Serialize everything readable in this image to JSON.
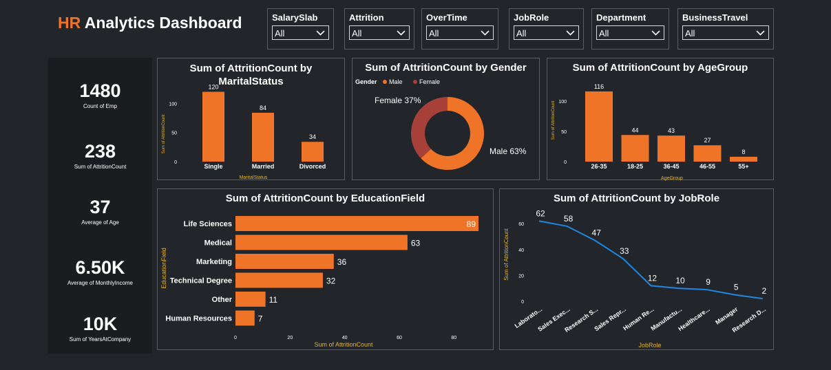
{
  "title_part1": "HR",
  "title_part2": " Analytics Dashboard",
  "slicers": [
    {
      "label": "SalarySlab",
      "value": "All"
    },
    {
      "label": "Attrition",
      "value": "All"
    },
    {
      "label": "OverTime",
      "value": "All"
    },
    {
      "label": "JobRole",
      "value": "All"
    },
    {
      "label": "Department",
      "value": "All"
    },
    {
      "label": "BusinessTravel",
      "value": "All"
    }
  ],
  "kpis": [
    {
      "value": "1480",
      "label": "Count of Emp"
    },
    {
      "value": "238",
      "label": "Sum of AttritionCount"
    },
    {
      "value": "37",
      "label": "Average of Age"
    },
    {
      "value": "6.50K",
      "label": "Average of MonthlyIncome"
    },
    {
      "value": "10K",
      "label": "Sum of YearsAtCompany"
    }
  ],
  "colors": {
    "orange": "#f07428",
    "female": "#a8403a",
    "line": "#1e88e5",
    "axis_title": "#e6b422",
    "background": "#222529"
  },
  "chart_data": [
    {
      "type": "bar",
      "title": "Sum of AttritionCount by MaritalStatus",
      "categories": [
        "Single",
        "Married",
        "Divorced"
      ],
      "values": [
        120,
        84,
        34
      ],
      "xlabel": "MaritalStatus",
      "ylabel": "Sum of AttritionCount",
      "yticks": [
        0,
        50,
        100
      ],
      "ylim": [
        0,
        130
      ]
    },
    {
      "type": "pie",
      "title": "Sum of AttritionCount by Gender",
      "legend_title": "Gender",
      "categories": [
        "Male",
        "Female"
      ],
      "values": [
        63,
        37
      ],
      "labels": [
        "Male 63%",
        "Female 37%"
      ],
      "legend_position": "top-left"
    },
    {
      "type": "bar",
      "title": "Sum of AttritionCount by AgeGroup",
      "categories": [
        "26-35",
        "18-25",
        "36-45",
        "46-55",
        "55+"
      ],
      "values": [
        116,
        44,
        43,
        27,
        8
      ],
      "xlabel": "AgeGroup",
      "ylabel": "Sum of AttritionCount",
      "yticks": [
        0,
        50,
        100
      ],
      "ylim": [
        0,
        125
      ]
    },
    {
      "type": "bar",
      "orientation": "horizontal",
      "title": "Sum of AttritionCount by EducationField",
      "categories": [
        "Life Sciences",
        "Medical",
        "Marketing",
        "Technical Degree",
        "Other",
        "Human Resources"
      ],
      "values": [
        89,
        63,
        36,
        32,
        11,
        7
      ],
      "xlabel": "Sum of AttritionCount",
      "ylabel": "EducationField",
      "xticks": [
        0,
        20,
        40,
        60,
        80
      ],
      "xlim": [
        0,
        89
      ]
    },
    {
      "type": "line",
      "title": "Sum of AttritionCount by JobRole",
      "categories": [
        "Laborato...",
        "Sales Exec...",
        "Research S...",
        "Sales Repr...",
        "Human Re...",
        "Manufactu...",
        "Healthcare...",
        "Manager",
        "Research D..."
      ],
      "values": [
        62,
        58,
        47,
        33,
        12,
        10,
        9,
        5,
        2
      ],
      "xlabel": "JobRole",
      "ylabel": "Sum of AttritionCount",
      "yticks": [
        0,
        20,
        40,
        60
      ],
      "ylim": [
        0,
        67
      ]
    }
  ]
}
